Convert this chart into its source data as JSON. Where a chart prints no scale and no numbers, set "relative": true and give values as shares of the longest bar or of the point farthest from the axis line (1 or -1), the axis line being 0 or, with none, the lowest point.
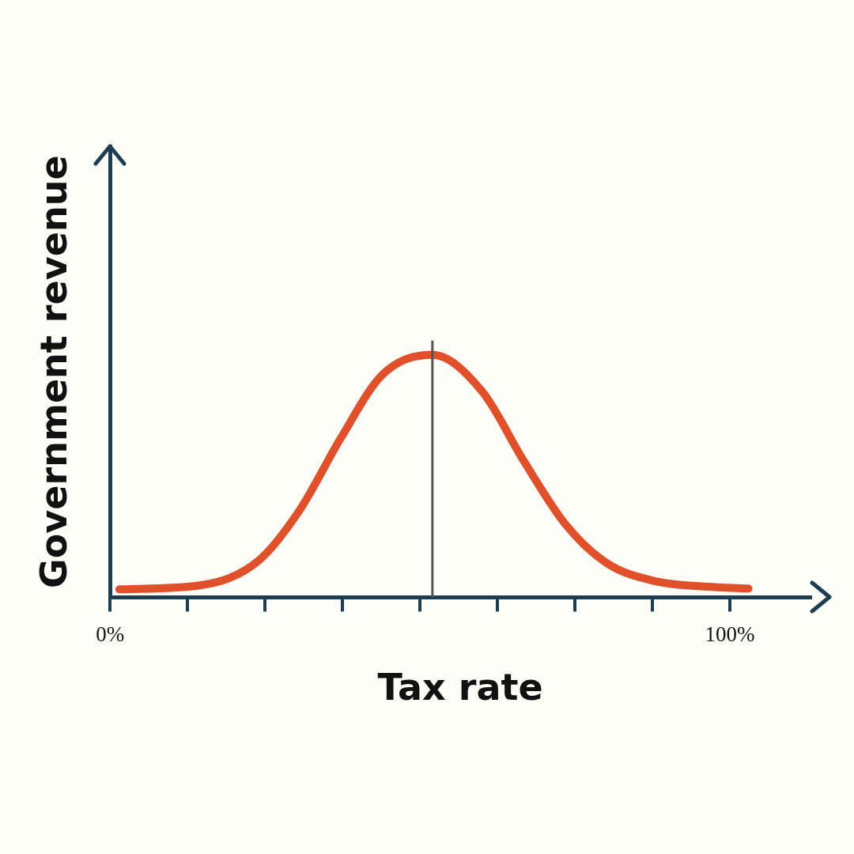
{
  "chart_data": {
    "type": "line",
    "xlabel": "Tax rate",
    "ylabel": "Government revenue",
    "relative": true,
    "xlim": [
      0,
      113
    ],
    "xticks": [
      {
        "value": 0,
        "label": "0%"
      },
      {
        "value": 12.5,
        "label": null
      },
      {
        "value": 25,
        "label": null
      },
      {
        "value": 37.5,
        "label": null
      },
      {
        "value": 50,
        "label": null
      },
      {
        "value": 62.5,
        "label": null
      },
      {
        "value": 75,
        "label": null
      },
      {
        "value": 87.5,
        "label": null
      },
      {
        "value": 100,
        "label": "100%"
      }
    ],
    "x": [
      1.5,
      14.7,
      23.9,
      30.6,
      37.3,
      44,
      52,
      60,
      66.8,
      73.5,
      80.2,
      88.2,
      94.9,
      103
    ],
    "series": [
      {
        "color": "#e0502a",
        "values": [
          0.033,
          0.05,
          0.15,
          0.36,
          0.66,
          0.92,
          1,
          0.85,
          0.56,
          0.3,
          0.14,
          0.065,
          0.046,
          0.036
        ]
      }
    ],
    "ref_lines": [
      {
        "axis": "x",
        "value": 52,
        "color": "#555555"
      }
    ],
    "grid": false,
    "legend": false,
    "marker": "none",
    "line_style": "solid"
  }
}
